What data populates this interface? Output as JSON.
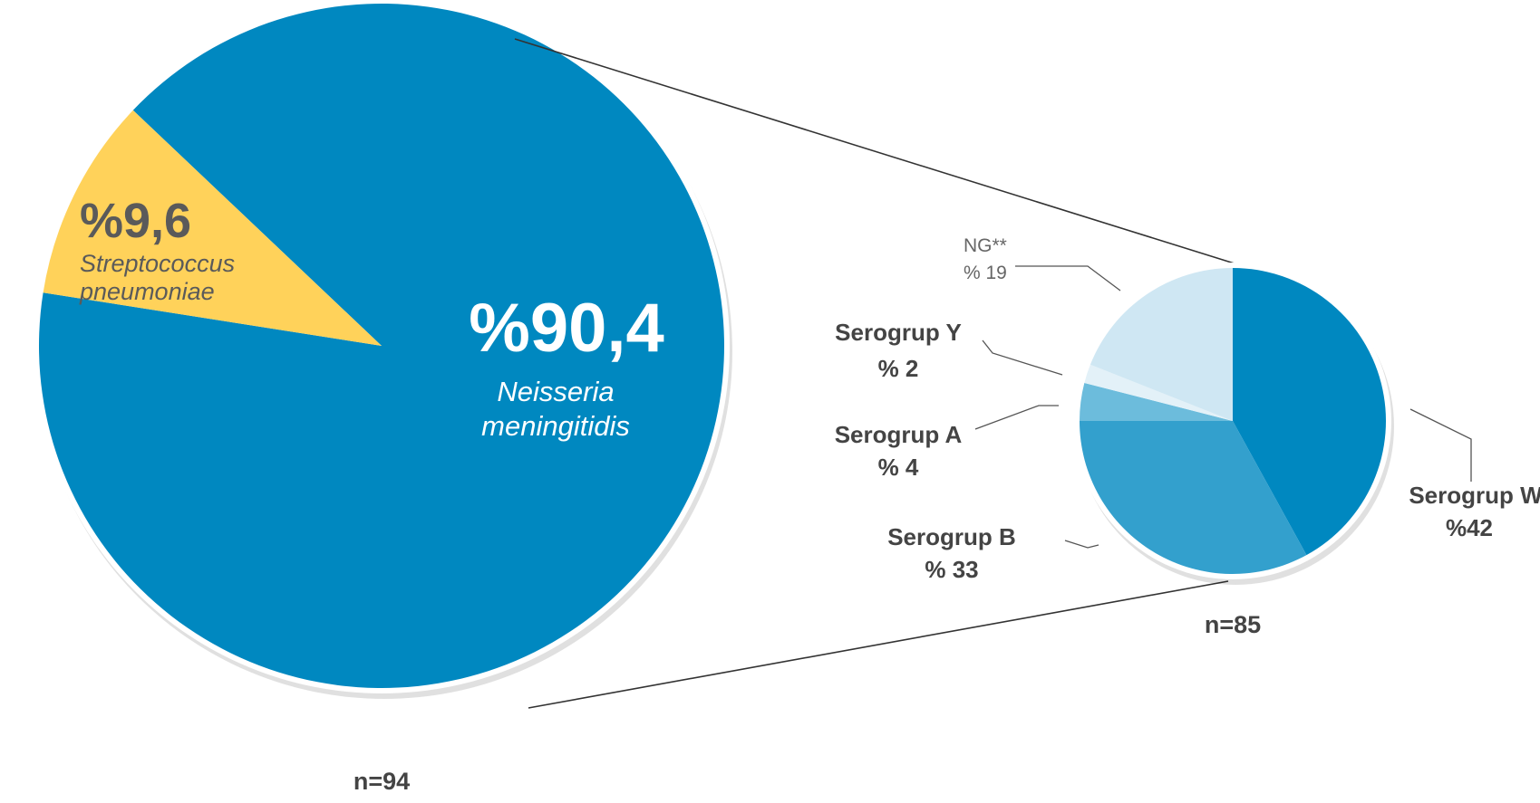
{
  "chart_data": [
    {
      "type": "pie",
      "sample_label": "n=94",
      "slices": [
        {
          "value": 90.4,
          "label": "%90,4",
          "name_line1": "Neisseria",
          "name_line2": "meningitidis",
          "color": "#0088c0"
        },
        {
          "value": 9.6,
          "label": "%9,6",
          "name_line1": "Streptococcus",
          "name_line2": "pneumoniae",
          "color": "#ffd25a"
        }
      ]
    },
    {
      "type": "pie",
      "sample_label": "n=85",
      "slices": [
        {
          "value": 42,
          "name": "Serogrup W",
          "label": "%42",
          "color": "#0088c0"
        },
        {
          "value": 33,
          "name": "Serogrup B",
          "label": "% 33",
          "color": "#33a0cd"
        },
        {
          "value": 4,
          "name": "Serogrup A",
          "label": "% 4",
          "color": "#6cbcdc"
        },
        {
          "value": 2,
          "name": "Serogrup Y",
          "label": "% 2",
          "color": "#e3f1f8"
        },
        {
          "value": 19,
          "name": "NG**",
          "label": "% 19",
          "color": "#cfe7f3"
        }
      ]
    }
  ]
}
